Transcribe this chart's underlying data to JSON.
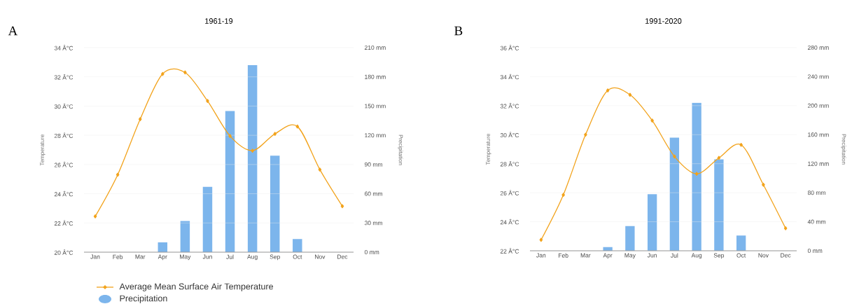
{
  "chart_data": [
    {
      "type": "bar",
      "title": "1961-19",
      "ylabel": "Temperature",
      "y2label": "Precipitation",
      "annotations": [
        "A"
      ],
      "categories": [
        "Jan",
        "Feb",
        "Mar",
        "Apr",
        "May",
        "Jun",
        "Jul",
        "Aug",
        "Sep",
        "Oct",
        "Nov",
        "Dec"
      ],
      "series": [
        {
          "name": "Average Mean Surface Air Temperature",
          "type": "line",
          "axis": "y",
          "color": "#f2a31c",
          "values": [
            22.45,
            25.3,
            29.1,
            32.2,
            32.3,
            30.35,
            27.95,
            26.95,
            28.1,
            28.6,
            25.65,
            23.15
          ]
        },
        {
          "name": "Precipitation",
          "axis": "y2",
          "color": "#7cb5ec",
          "values": [
            0,
            0,
            0,
            10,
            32,
            67,
            145,
            192,
            99,
            13.5,
            0,
            0
          ]
        }
      ],
      "ylim": [
        20,
        34
      ],
      "yticks": [
        {
          "value": 20,
          "label": "20 Â°C"
        },
        {
          "value": 22,
          "label": "22 Â°C"
        },
        {
          "value": 24,
          "label": "24 Â°C"
        },
        {
          "value": 26,
          "label": "26 Â°C"
        },
        {
          "value": 28,
          "label": "28 Â°C"
        },
        {
          "value": 30,
          "label": "30 Â°C"
        },
        {
          "value": 32,
          "label": "32 Â°C"
        },
        {
          "value": 34,
          "label": "34 Â°C"
        }
      ],
      "y2lim": [
        0,
        210
      ],
      "y2ticks": [
        {
          "value": 0,
          "label": "0 mm"
        },
        {
          "value": 30,
          "label": "30 mm"
        },
        {
          "value": 60,
          "label": "60 mm"
        },
        {
          "value": 90,
          "label": "90 mm"
        },
        {
          "value": 120,
          "label": "120 mm"
        },
        {
          "value": 150,
          "label": "150 mm"
        },
        {
          "value": 180,
          "label": "180 mm"
        },
        {
          "value": 210,
          "label": "210 mm"
        }
      ],
      "grid": "y",
      "marker": "diamond",
      "legend": "bottom"
    },
    {
      "type": "bar",
      "title": "1991-2020",
      "ylabel": "Temperature",
      "y2label": "Precipitation",
      "annotations": [
        "B"
      ],
      "categories": [
        "Jan",
        "Feb",
        "Mar",
        "Apr",
        "May",
        "Jun",
        "Jul",
        "Aug",
        "Sep",
        "Oct",
        "Nov",
        "Dec"
      ],
      "series": [
        {
          "type": "line",
          "axis": "y",
          "color": "#f2a31c",
          "values": [
            22.75,
            25.85,
            30.0,
            33.05,
            32.75,
            30.97,
            28.5,
            27.3,
            28.4,
            29.3,
            26.55,
            23.55
          ]
        },
        {
          "axis": "y2",
          "color": "#7cb5ec",
          "values": [
            0,
            0,
            0,
            5,
            34,
            78,
            156,
            204,
            126,
            21,
            0,
            0
          ]
        }
      ],
      "ylim": [
        22,
        36
      ],
      "yticks": [
        {
          "value": 22,
          "label": "22 Â°C"
        },
        {
          "value": 24,
          "label": "24 Â°C"
        },
        {
          "value": 26,
          "label": "26 Â°C"
        },
        {
          "value": 28,
          "label": "28 Â°C"
        },
        {
          "value": 30,
          "label": "30 Â°C"
        },
        {
          "value": 32,
          "label": "32 Â°C"
        },
        {
          "value": 34,
          "label": "34 Â°C"
        },
        {
          "value": 36,
          "label": "36 Â°C"
        }
      ],
      "y2lim": [
        0,
        280
      ],
      "y2ticks": [
        {
          "value": 0,
          "label": "0 mm"
        },
        {
          "value": 40,
          "label": "40 mm"
        },
        {
          "value": 80,
          "label": "80 mm"
        },
        {
          "value": 120,
          "label": "120 mm"
        },
        {
          "value": 160,
          "label": "160 mm"
        },
        {
          "value": 200,
          "label": "200 mm"
        },
        {
          "value": 240,
          "label": "240 mm"
        },
        {
          "value": 280,
          "label": "280 mm"
        }
      ],
      "grid": "y",
      "marker": "diamond"
    }
  ]
}
